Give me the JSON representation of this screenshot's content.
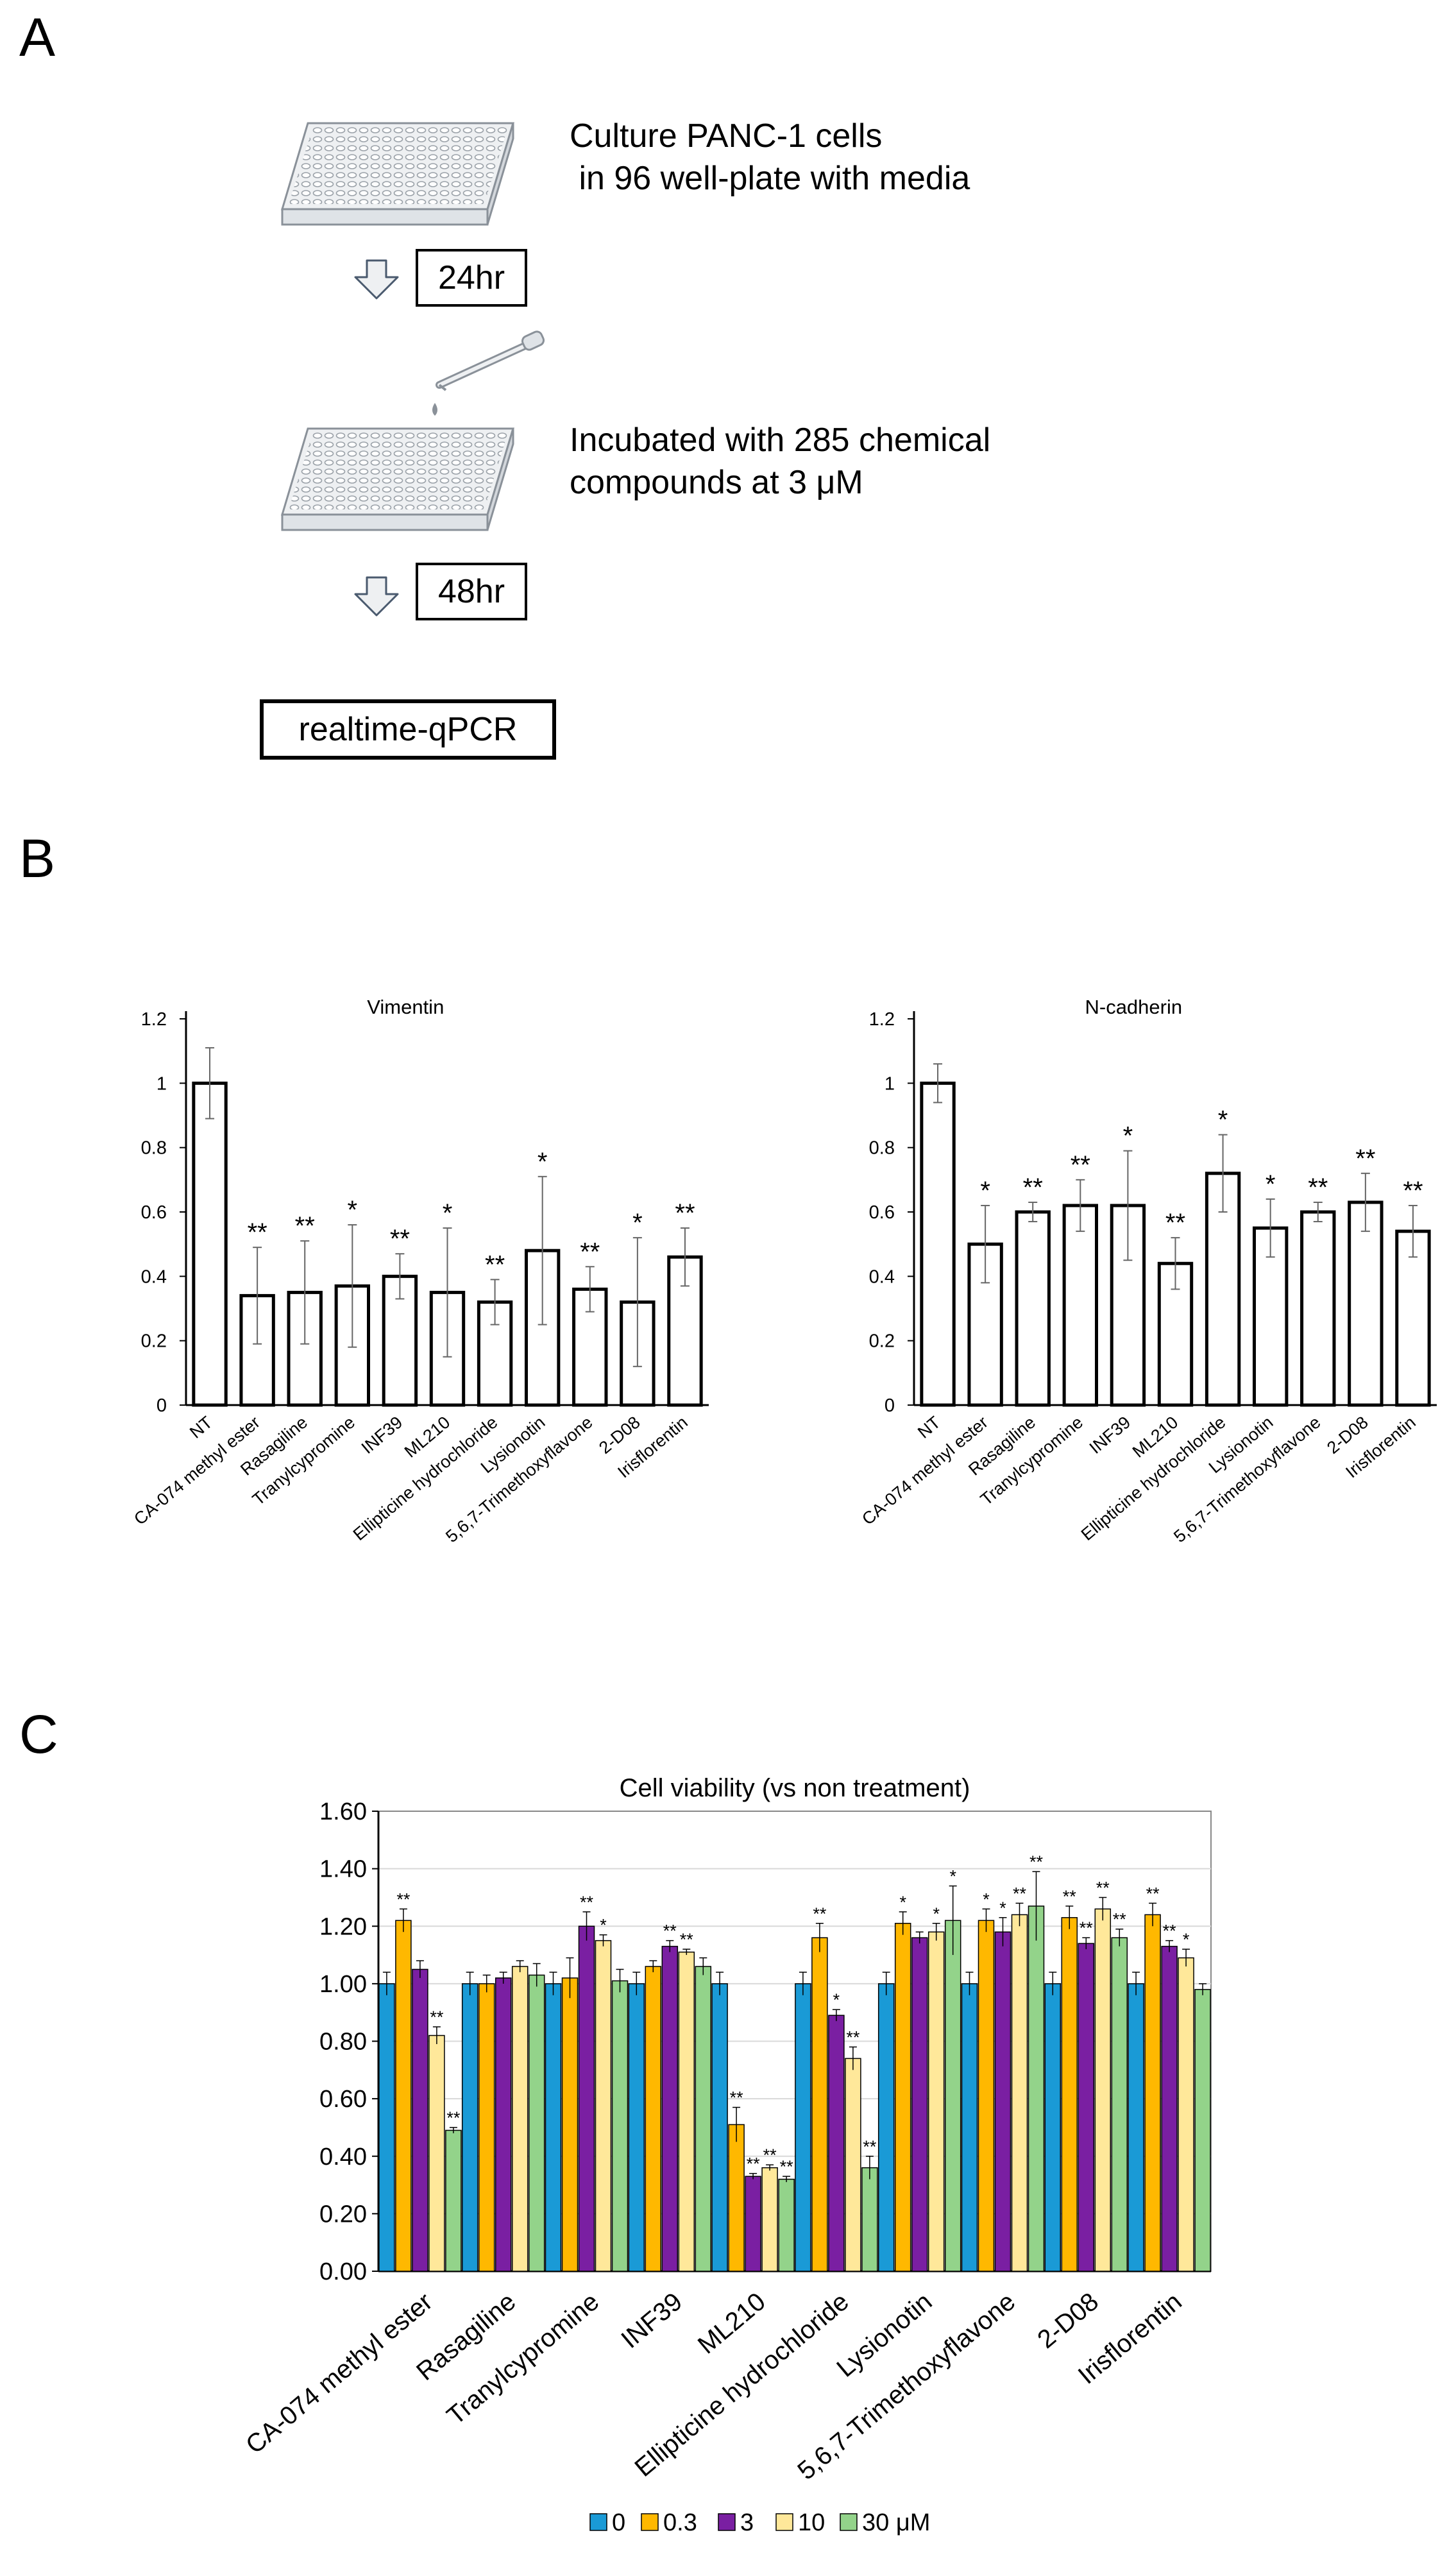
{
  "panelA": {
    "label": "A",
    "step1_line1": "Culture PANC-1 cells",
    "step1_line2": " in 96 well-plate with media",
    "wait1": "24hr",
    "step2_line1": "Incubated with 285 chemical",
    "step2_line2": "compounds at 3 μM",
    "wait2": "48hr",
    "readout": "realtime-qPCR"
  },
  "panelB": {
    "label": "B",
    "ylabel_ticks": [
      "0",
      "0.2",
      "0.4",
      "0.6",
      "0.8",
      "1",
      "1.2"
    ]
  },
  "panelC": {
    "label": "C",
    "legend": [
      "0",
      "0.3",
      "3",
      "10",
      "30 μM"
    ],
    "colors": [
      "#1a9ad6",
      "#ffb800",
      "#7a1fa2",
      "#ffe89a",
      "#93d38a"
    ]
  },
  "chart_data": [
    {
      "type": "bar",
      "title": "Vimentin",
      "categories": [
        "NT",
        "CA-074 methyl ester",
        "Rasagiline",
        "Tranylcypromine",
        "INF39",
        "ML210",
        "Ellipticine hydrochloride",
        "Lysionotin",
        "5,6,7-Trimethoxyflavone",
        "2-D08",
        "Irisflorentin"
      ],
      "values": [
        1.0,
        0.34,
        0.35,
        0.37,
        0.4,
        0.35,
        0.32,
        0.48,
        0.36,
        0.32,
        0.46
      ],
      "errors": [
        0.11,
        0.15,
        0.16,
        0.19,
        0.07,
        0.2,
        0.07,
        0.23,
        0.07,
        0.2,
        0.09
      ],
      "significance": [
        "",
        "**",
        "**",
        "*",
        "**",
        "*",
        "**",
        "*",
        "**",
        "*",
        "**"
      ],
      "ylim": [
        0,
        1.2
      ],
      "yticks": [
        0,
        0.2,
        0.4,
        0.6,
        0.8,
        1,
        1.2
      ],
      "xlabel": "",
      "ylabel": ""
    },
    {
      "type": "bar",
      "title": "N-cadherin",
      "categories": [
        "NT",
        "CA-074 methyl ester",
        "Rasagiline",
        "Tranylcypromine",
        "INF39",
        "ML210",
        "Ellipticine hydrochloride",
        "Lysionotin",
        "5,6,7-Trimethoxyflavone",
        "2-D08",
        "Irisflorentin"
      ],
      "values": [
        1.0,
        0.5,
        0.6,
        0.62,
        0.62,
        0.44,
        0.72,
        0.55,
        0.6,
        0.63,
        0.54
      ],
      "errors": [
        0.06,
        0.12,
        0.03,
        0.08,
        0.17,
        0.08,
        0.12,
        0.09,
        0.03,
        0.09,
        0.08
      ],
      "significance": [
        "",
        "*",
        "**",
        "**",
        "*",
        "**",
        "*",
        "*",
        "**",
        "**",
        "**"
      ],
      "ylim": [
        0,
        1.2
      ],
      "yticks": [
        0,
        0.2,
        0.4,
        0.6,
        0.8,
        1,
        1.2
      ],
      "xlabel": "",
      "ylabel": ""
    },
    {
      "type": "bar",
      "title": "Cell viability (vs non treatment)",
      "categories": [
        "CA-074 methyl ester",
        "Rasagiline",
        "Tranylcypromine",
        "INF39",
        "ML210",
        "Ellipticine hydrochloride",
        "Lysionotin",
        "5,6,7-Trimethoxyflavone",
        "2-D08",
        "Irisflorentin"
      ],
      "series": [
        {
          "name": "0",
          "values": [
            1.0,
            1.0,
            1.0,
            1.0,
            1.0,
            1.0,
            1.0,
            1.0,
            1.0,
            1.0
          ],
          "errors": [
            0.04,
            0.04,
            0.04,
            0.04,
            0.04,
            0.04,
            0.04,
            0.04,
            0.04,
            0.04
          ],
          "significance": [
            "",
            "",
            "",
            "",
            "",
            "",
            "",
            "",
            "",
            ""
          ]
        },
        {
          "name": "0.3",
          "values": [
            1.22,
            1.0,
            1.02,
            1.06,
            0.51,
            1.16,
            1.21,
            1.22,
            1.23,
            1.24
          ],
          "errors": [
            0.04,
            0.03,
            0.07,
            0.02,
            0.06,
            0.05,
            0.04,
            0.04,
            0.04,
            0.04
          ],
          "significance": [
            "**",
            "",
            "",
            "",
            "**",
            "**",
            "*",
            "*",
            "**",
            "**"
          ]
        },
        {
          "name": "3",
          "values": [
            1.05,
            1.02,
            1.2,
            1.13,
            0.33,
            0.89,
            1.16,
            1.18,
            1.14,
            1.13
          ],
          "errors": [
            0.03,
            0.02,
            0.05,
            0.02,
            0.01,
            0.02,
            0.02,
            0.05,
            0.02,
            0.02
          ],
          "significance": [
            "",
            "",
            "**",
            "**",
            "**",
            "*",
            "",
            "*",
            "**",
            "**"
          ]
        },
        {
          "name": "10",
          "values": [
            0.82,
            1.06,
            1.15,
            1.11,
            0.36,
            0.74,
            1.18,
            1.24,
            1.26,
            1.09
          ],
          "errors": [
            0.03,
            0.02,
            0.02,
            0.01,
            0.01,
            0.04,
            0.03,
            0.04,
            0.04,
            0.03
          ],
          "significance": [
            "**",
            "",
            "*",
            "**",
            "**",
            "**",
            "*",
            "**",
            "**",
            "*"
          ]
        },
        {
          "name": "30 μM",
          "values": [
            0.49,
            1.03,
            1.01,
            1.06,
            0.32,
            0.36,
            1.22,
            1.27,
            1.16,
            0.98
          ],
          "errors": [
            0.01,
            0.04,
            0.04,
            0.03,
            0.01,
            0.04,
            0.12,
            0.12,
            0.03,
            0.02
          ],
          "significance": [
            "**",
            "",
            "",
            "",
            "**",
            "**",
            "*",
            "**",
            "**",
            ""
          ]
        }
      ],
      "ylim": [
        0,
        1.6
      ],
      "yticks": [
        "0.00",
        "0.20",
        "0.40",
        "0.60",
        "0.80",
        "1.00",
        "1.20",
        "1.40",
        "1.60"
      ],
      "legend_position": "bottom",
      "xlabel": "",
      "ylabel": ""
    }
  ]
}
